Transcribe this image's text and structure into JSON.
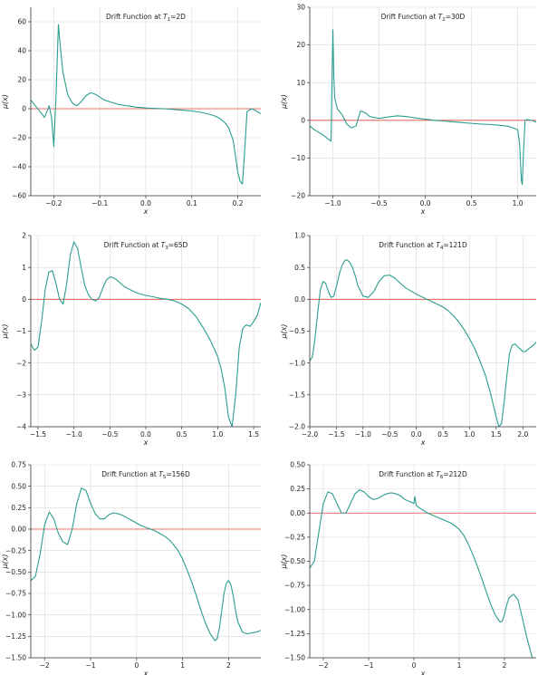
{
  "chart_data": [
    {
      "type": "line",
      "title": "Drift Function at T1=2D",
      "title_parts": {
        "prefix": "Drift Function at ",
        "sym": "T",
        "sub": "1",
        "suffix": "=2D"
      },
      "xlabel": "x",
      "ylabel": "μ(x)",
      "xlim": [
        -0.25,
        0.25
      ],
      "ylim": [
        -60,
        70
      ],
      "xticks": [
        -0.2,
        -0.1,
        0.0,
        0.1,
        0.2
      ],
      "xtick_labels": [
        "−0.2",
        "−0.1",
        "0.0",
        "0.1",
        "0.2"
      ],
      "yticks": [
        -60,
        -40,
        -20,
        0,
        20,
        40,
        60
      ],
      "ytick_labels": [
        "−60",
        "−40",
        "−20",
        "0",
        "20",
        "40",
        "60"
      ],
      "grid": true,
      "reference_line": {
        "y": 0,
        "color": "#e8463c"
      },
      "series": [
        {
          "color": "#2a9d8f",
          "x": [
            -0.25,
            -0.24,
            -0.23,
            -0.22,
            -0.21,
            -0.205,
            -0.2,
            -0.195,
            -0.19,
            -0.185,
            -0.18,
            -0.17,
            -0.16,
            -0.15,
            -0.14,
            -0.13,
            -0.12,
            -0.11,
            -0.1,
            -0.09,
            -0.08,
            -0.07,
            -0.06,
            -0.05,
            -0.04,
            -0.03,
            -0.02,
            -0.01,
            0.0,
            0.02,
            0.04,
            0.06,
            0.08,
            0.1,
            0.12,
            0.14,
            0.15,
            0.16,
            0.17,
            0.18,
            0.19,
            0.2,
            0.205,
            0.21,
            0.215,
            0.22,
            0.23,
            0.24,
            0.25
          ],
          "y": [
            6,
            2,
            -2,
            -6,
            2,
            -6,
            -26,
            10,
            58,
            40,
            25,
            10,
            4,
            2,
            5,
            9,
            11,
            10,
            8,
            6,
            5,
            4,
            3,
            2.5,
            2,
            1.5,
            1,
            0.8,
            0.5,
            0.2,
            0,
            -0.5,
            -1,
            -1.5,
            -2.5,
            -4,
            -5,
            -6.5,
            -9,
            -13,
            -22,
            -44,
            -50,
            -52,
            -28,
            -2,
            0,
            -1.5,
            -3.5
          ]
        }
      ]
    },
    {
      "type": "line",
      "title": "Drift Function at T2=30D",
      "title_parts": {
        "prefix": "Drift Function at ",
        "sym": "T",
        "sub": "2",
        "suffix": "=30D"
      },
      "xlabel": "x",
      "ylabel": "μ(x)",
      "xlim": [
        -1.25,
        1.2
      ],
      "ylim": [
        -20,
        30
      ],
      "xticks": [
        -1.0,
        -0.5,
        0.0,
        0.5,
        1.0
      ],
      "xtick_labels": [
        "−1.0",
        "−0.5",
        "0.0",
        "0.5",
        "1.0"
      ],
      "yticks": [
        -20,
        -10,
        0,
        10,
        20,
        30
      ],
      "ytick_labels": [
        "−20",
        "−10",
        "0",
        "10",
        "20",
        "30"
      ],
      "grid": true,
      "reference_line": {
        "y": 0,
        "color": "#e8463c"
      },
      "series": [
        {
          "color": "#2a9d8f",
          "x": [
            -1.25,
            -1.2,
            -1.15,
            -1.1,
            -1.05,
            -1.02,
            -1.0,
            -0.99,
            -0.98,
            -0.95,
            -0.9,
            -0.85,
            -0.8,
            -0.75,
            -0.7,
            -0.65,
            -0.6,
            -0.5,
            -0.4,
            -0.3,
            -0.2,
            -0.1,
            0.0,
            0.1,
            0.2,
            0.3,
            0.4,
            0.5,
            0.6,
            0.7,
            0.8,
            0.9,
            0.95,
            1.0,
            1.02,
            1.04,
            1.05,
            1.06,
            1.08,
            1.1,
            1.15,
            1.2
          ],
          "y": [
            -1.5,
            -2.5,
            -3.2,
            -4,
            -5,
            -5.5,
            24,
            12,
            6,
            3,
            1.5,
            -1,
            -2,
            -1.5,
            2.5,
            2,
            1,
            0.5,
            0.9,
            1.2,
            1,
            0.6,
            0.3,
            0,
            -0.2,
            -0.4,
            -0.6,
            -0.8,
            -1,
            -1.1,
            -1.3,
            -1.6,
            -2,
            -2.5,
            -6,
            -16,
            -17,
            -10,
            0,
            0.2,
            0,
            -0.5
          ]
        }
      ]
    },
    {
      "type": "line",
      "title": "Drift Function at T3=65D",
      "title_parts": {
        "prefix": "Drift Function at ",
        "sym": "T",
        "sub": "3",
        "suffix": "=65D"
      },
      "xlabel": "x",
      "ylabel": "μ(x)",
      "xlim": [
        -1.6,
        1.6
      ],
      "ylim": [
        -4,
        2
      ],
      "xticks": [
        -1.5,
        -1.0,
        -0.5,
        0.0,
        0.5,
        1.0,
        1.5
      ],
      "xtick_labels": [
        "−1.5",
        "−1.0",
        "−0.5",
        "0.0",
        "0.5",
        "1.0",
        "1.5"
      ],
      "yticks": [
        -4,
        -3,
        -2,
        -1,
        0,
        1,
        2
      ],
      "ytick_labels": [
        "−4",
        "−3",
        "−2",
        "−1",
        "0",
        "1",
        "2"
      ],
      "grid": true,
      "reference_line": {
        "y": 0,
        "color": "#e8463c"
      },
      "series": [
        {
          "color": "#2a9d8f",
          "x": [
            -1.6,
            -1.55,
            -1.5,
            -1.45,
            -1.4,
            -1.35,
            -1.3,
            -1.25,
            -1.2,
            -1.15,
            -1.1,
            -1.05,
            -1.0,
            -0.95,
            -0.9,
            -0.85,
            -0.8,
            -0.75,
            -0.7,
            -0.65,
            -0.6,
            -0.55,
            -0.5,
            -0.45,
            -0.4,
            -0.35,
            -0.3,
            -0.2,
            -0.1,
            0.0,
            0.1,
            0.2,
            0.3,
            0.4,
            0.5,
            0.6,
            0.7,
            0.8,
            0.9,
            1.0,
            1.05,
            1.1,
            1.15,
            1.2,
            1.25,
            1.3,
            1.35,
            1.4,
            1.45,
            1.5,
            1.55,
            1.6
          ],
          "y": [
            -1.4,
            -1.6,
            -1.5,
            -0.7,
            0.3,
            0.85,
            0.9,
            0.5,
            0.0,
            -0.15,
            0.5,
            1.4,
            1.8,
            1.6,
            1.0,
            0.45,
            0.15,
            0.0,
            -0.05,
            0.05,
            0.35,
            0.6,
            0.7,
            0.68,
            0.6,
            0.5,
            0.4,
            0.28,
            0.18,
            0.12,
            0.08,
            0.03,
            0.0,
            -0.05,
            -0.15,
            -0.3,
            -0.55,
            -0.9,
            -1.3,
            -1.8,
            -2.2,
            -2.8,
            -3.7,
            -4.0,
            -3.0,
            -1.5,
            -0.9,
            -0.8,
            -0.85,
            -0.7,
            -0.5,
            -0.1
          ]
        }
      ]
    },
    {
      "type": "line",
      "title": "Drift Function at T4=121D",
      "title_parts": {
        "prefix": "Drift Function at ",
        "sym": "T",
        "sub": "4",
        "suffix": "=121D"
      },
      "xlabel": "x",
      "ylabel": "μ(x)",
      "xlim": [
        -2.0,
        2.25
      ],
      "ylim": [
        -2.0,
        1.0
      ],
      "xticks": [
        -2.0,
        -1.5,
        -1.0,
        -0.5,
        0.0,
        0.5,
        1.0,
        1.5,
        2.0
      ],
      "xtick_labels": [
        "−2.0",
        "−1.5",
        "−1.0",
        "−0.5",
        "0.0",
        "0.5",
        "1.0",
        "1.5",
        "2.0"
      ],
      "yticks": [
        -2.0,
        -1.5,
        -1.0,
        -0.5,
        0.0,
        0.5,
        1.0
      ],
      "ytick_labels": [
        "−2.0",
        "−1.5",
        "−1.0",
        "−0.5",
        "0.0",
        "0.5",
        "1.0"
      ],
      "grid": true,
      "reference_line": {
        "y": 0,
        "color": "#e8463c"
      },
      "series": [
        {
          "color": "#2a9d8f",
          "x": [
            -2.0,
            -1.95,
            -1.9,
            -1.85,
            -1.8,
            -1.75,
            -1.7,
            -1.65,
            -1.6,
            -1.55,
            -1.5,
            -1.45,
            -1.4,
            -1.35,
            -1.3,
            -1.25,
            -1.2,
            -1.15,
            -1.1,
            -1.0,
            -0.9,
            -0.8,
            -0.7,
            -0.6,
            -0.5,
            -0.4,
            -0.3,
            -0.2,
            -0.1,
            0.0,
            0.1,
            0.2,
            0.3,
            0.4,
            0.5,
            0.6,
            0.7,
            0.8,
            0.9,
            1.0,
            1.1,
            1.2,
            1.3,
            1.4,
            1.5,
            1.55,
            1.6,
            1.65,
            1.7,
            1.75,
            1.8,
            1.85,
            1.9,
            1.95,
            2.0,
            2.05,
            2.1,
            2.15,
            2.2,
            2.25
          ],
          "y": [
            -0.97,
            -0.9,
            -0.6,
            -0.2,
            0.15,
            0.28,
            0.25,
            0.12,
            0.03,
            0.05,
            0.2,
            0.38,
            0.52,
            0.6,
            0.62,
            0.58,
            0.5,
            0.38,
            0.22,
            0.05,
            0.03,
            0.12,
            0.28,
            0.37,
            0.38,
            0.33,
            0.25,
            0.18,
            0.13,
            0.08,
            0.04,
            0.0,
            -0.04,
            -0.08,
            -0.12,
            -0.18,
            -0.26,
            -0.36,
            -0.48,
            -0.62,
            -0.78,
            -0.98,
            -1.2,
            -1.5,
            -1.85,
            -2.0,
            -1.95,
            -1.6,
            -1.2,
            -0.85,
            -0.72,
            -0.7,
            -0.74,
            -0.78,
            -0.82,
            -0.82,
            -0.78,
            -0.75,
            -0.72,
            -0.67
          ]
        }
      ]
    },
    {
      "type": "line",
      "title": "Drift Function at T5=156D",
      "title_parts": {
        "prefix": "Drift Function at ",
        "sym": "T",
        "sub": "5",
        "suffix": "=156D"
      },
      "xlabel": "x",
      "ylabel": "μ(x)",
      "xlim": [
        -2.3,
        2.7
      ],
      "ylim": [
        -1.5,
        0.75
      ],
      "xticks": [
        -2,
        -1,
        0,
        1,
        2
      ],
      "xtick_labels": [
        "−2",
        "−1",
        "0",
        "1",
        "2"
      ],
      "yticks": [
        -1.5,
        -1.25,
        -1.0,
        -0.75,
        -0.5,
        -0.25,
        0.0,
        0.25,
        0.5,
        0.75
      ],
      "ytick_labels": [
        "−1.50",
        "−1.25",
        "−1.00",
        "−0.75",
        "−0.50",
        "−0.25",
        "0.00",
        "0.25",
        "0.50",
        "0.75"
      ],
      "grid": true,
      "reference_line": {
        "y": 0,
        "color": "#e8463c"
      },
      "series": [
        {
          "color": "#2a9d8f",
          "x": [
            -2.3,
            -2.2,
            -2.1,
            -2.0,
            -1.9,
            -1.8,
            -1.7,
            -1.6,
            -1.5,
            -1.4,
            -1.3,
            -1.2,
            -1.1,
            -1.0,
            -0.9,
            -0.8,
            -0.7,
            -0.6,
            -0.5,
            -0.4,
            -0.3,
            -0.2,
            -0.1,
            0.0,
            0.1,
            0.2,
            0.3,
            0.4,
            0.5,
            0.6,
            0.7,
            0.8,
            0.9,
            1.0,
            1.1,
            1.2,
            1.3,
            1.4,
            1.5,
            1.6,
            1.7,
            1.75,
            1.8,
            1.85,
            1.9,
            1.95,
            2.0,
            2.05,
            2.1,
            2.15,
            2.2,
            2.3,
            2.4,
            2.5,
            2.6,
            2.7
          ],
          "y": [
            -0.6,
            -0.55,
            -0.3,
            0.05,
            0.2,
            0.12,
            -0.05,
            -0.15,
            -0.18,
            0.0,
            0.3,
            0.48,
            0.45,
            0.3,
            0.18,
            0.12,
            0.12,
            0.17,
            0.19,
            0.18,
            0.16,
            0.13,
            0.1,
            0.07,
            0.04,
            0.02,
            0.0,
            -0.02,
            -0.05,
            -0.08,
            -0.12,
            -0.18,
            -0.25,
            -0.35,
            -0.48,
            -0.62,
            -0.78,
            -0.95,
            -1.1,
            -1.22,
            -1.3,
            -1.28,
            -1.15,
            -0.95,
            -0.75,
            -0.63,
            -0.6,
            -0.65,
            -0.78,
            -0.95,
            -1.08,
            -1.2,
            -1.22,
            -1.21,
            -1.2,
            -1.18
          ]
        }
      ]
    },
    {
      "type": "line",
      "title": "Drift Function at T6=212D",
      "title_parts": {
        "prefix": "Drift Function at ",
        "sym": "T",
        "sub": "6",
        "suffix": "=212D"
      },
      "xlabel": "x",
      "ylabel": "μ(x)",
      "xlim": [
        -2.3,
        2.7
      ],
      "ylim": [
        -1.5,
        0.5
      ],
      "xticks": [
        -2,
        -1,
        0,
        1,
        2
      ],
      "xtick_labels": [
        "−2",
        "−1",
        "0",
        "1",
        "2"
      ],
      "yticks": [
        -1.5,
        -1.25,
        -1.0,
        -0.75,
        -0.5,
        -0.25,
        0.0,
        0.25,
        0.5
      ],
      "ytick_labels": [
        "−1.50",
        "−1.25",
        "−1.00",
        "−0.75",
        "−0.50",
        "−0.25",
        "0.00",
        "0.25",
        "0.50"
      ],
      "grid": true,
      "reference_line": {
        "y": 0,
        "color": "#e8463c"
      },
      "series": [
        {
          "color": "#2a9d8f",
          "x": [
            -2.3,
            -2.2,
            -2.1,
            -2.0,
            -1.9,
            -1.8,
            -1.7,
            -1.6,
            -1.5,
            -1.4,
            -1.3,
            -1.2,
            -1.1,
            -1.0,
            -0.9,
            -0.8,
            -0.7,
            -0.6,
            -0.5,
            -0.4,
            -0.3,
            -0.2,
            -0.1,
            0.0,
            0.02,
            0.05,
            0.1,
            0.2,
            0.3,
            0.4,
            0.5,
            0.6,
            0.7,
            0.8,
            0.9,
            1.0,
            1.1,
            1.2,
            1.3,
            1.4,
            1.5,
            1.6,
            1.7,
            1.8,
            1.9,
            1.95,
            2.0,
            2.05,
            2.1,
            2.2,
            2.3,
            2.4,
            2.5,
            2.6,
            2.65
          ],
          "y": [
            -0.57,
            -0.5,
            -0.2,
            0.1,
            0.22,
            0.2,
            0.1,
            0.0,
            0.0,
            0.1,
            0.2,
            0.24,
            0.22,
            0.17,
            0.14,
            0.15,
            0.18,
            0.2,
            0.21,
            0.2,
            0.18,
            0.14,
            0.12,
            0.1,
            0.17,
            0.08,
            0.06,
            0.03,
            0.0,
            -0.02,
            -0.04,
            -0.06,
            -0.08,
            -0.1,
            -0.13,
            -0.17,
            -0.23,
            -0.32,
            -0.43,
            -0.55,
            -0.68,
            -0.82,
            -0.95,
            -1.06,
            -1.13,
            -1.12,
            -1.05,
            -0.95,
            -0.88,
            -0.84,
            -0.9,
            -1.1,
            -1.3,
            -1.48,
            -1.52
          ]
        }
      ]
    }
  ]
}
